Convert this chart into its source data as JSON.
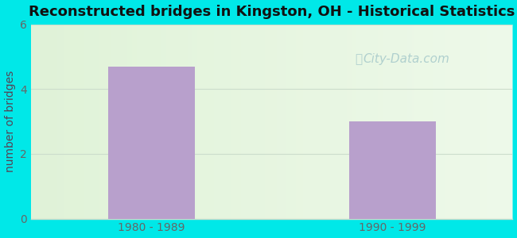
{
  "title_display": "Reconstructed bridges in Kingston, OH - Historical Statistics",
  "categories": [
    "1980 - 1989",
    "1990 - 1999"
  ],
  "values": [
    4.7,
    3.0
  ],
  "bar_color": "#b8a0cc",
  "ylabel": "number of bridges",
  "ylim": [
    0,
    6
  ],
  "yticks": [
    0,
    2,
    4,
    6
  ],
  "outer_bg": "#00e8e8",
  "inner_bg": "#e8f5e0",
  "grid_color": "#ccddcc",
  "tick_label_color": "#666666",
  "ylabel_color": "#554455",
  "title_color": "#111111",
  "watermark_text": "City-Data.com",
  "watermark_color": "#aacccc",
  "xlabel_fontsize": 10,
  "ylabel_fontsize": 10,
  "title_fontsize": 13,
  "bar_width": 0.18
}
